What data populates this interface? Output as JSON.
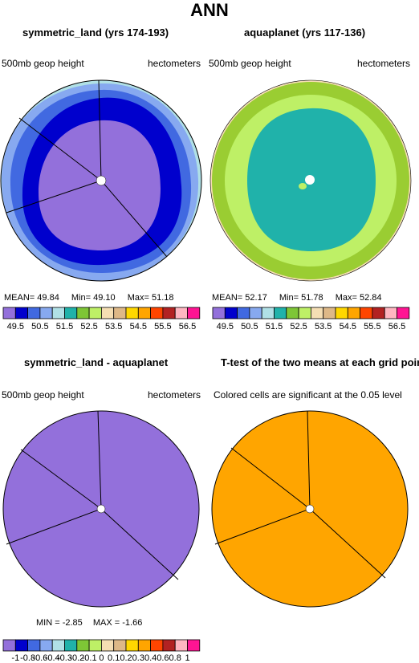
{
  "page": {
    "title": "ANN"
  },
  "panels": [
    {
      "id": "symmetric_land",
      "title": "symmetric_land (yrs 174-193)",
      "left_label": "500mb geop height",
      "right_label": "hectometers",
      "stats": {
        "mean_label": "MEAN=",
        "mean": "49.84",
        "min_label": "Min=",
        "min": "49.10",
        "max_label": "Max=",
        "max": "51.18"
      }
    },
    {
      "id": "aquaplanet",
      "title": "aquaplanet (yrs 117-136)",
      "left_label": "500mb geop height",
      "right_label": "hectometers",
      "stats": {
        "mean_label": "MEAN=",
        "mean": "52.17",
        "min_label": "Min=",
        "min": "51.78",
        "max_label": "Max=",
        "max": "52.84"
      }
    },
    {
      "id": "difference",
      "title": "symmetric_land - aquaplanet",
      "left_label": "500mb geop height",
      "right_label": "hectometers",
      "stats": {
        "min_label": "MIN =",
        "min": "-2.85",
        "max_label": "MAX =",
        "max": "-1.66"
      }
    },
    {
      "id": "ttest",
      "title": "T-test of the two means at each grid point",
      "subtitle": "Colored cells are significant at the 0.05 level"
    }
  ],
  "colorbars": {
    "top": {
      "colors": [
        "#9370db",
        "#0000cd",
        "#4169e1",
        "#87a9f0",
        "#b0e0e6",
        "#20b2aa",
        "#7ec636",
        "#bef066",
        "#f5deb3",
        "#deb887",
        "#ffd700",
        "#ffa500",
        "#ff4500",
        "#b22222",
        "#ffb6c1",
        "#ff1493"
      ],
      "labels": [
        "49.5",
        "50.5",
        "51.5",
        "52.5",
        "53.5",
        "54.5",
        "55.5",
        "56.5"
      ]
    },
    "bottom": {
      "colors": [
        "#9370db",
        "#0000cd",
        "#4169e1",
        "#87a9f0",
        "#b0e0e6",
        "#20b2aa",
        "#7ec636",
        "#bef066",
        "#f5deb3",
        "#deb887",
        "#ffd700",
        "#ffa500",
        "#ff4500",
        "#b22222",
        "#ffb6c1",
        "#ff1493"
      ],
      "labels": [
        "-1",
        "-0.8",
        "-0.6",
        "-0.4",
        "-0.3",
        "-0.2",
        "-0.1",
        "0",
        "0.1",
        "0.2",
        "0.3",
        "0.4",
        "0.6",
        "0.8",
        "1"
      ]
    }
  }
}
